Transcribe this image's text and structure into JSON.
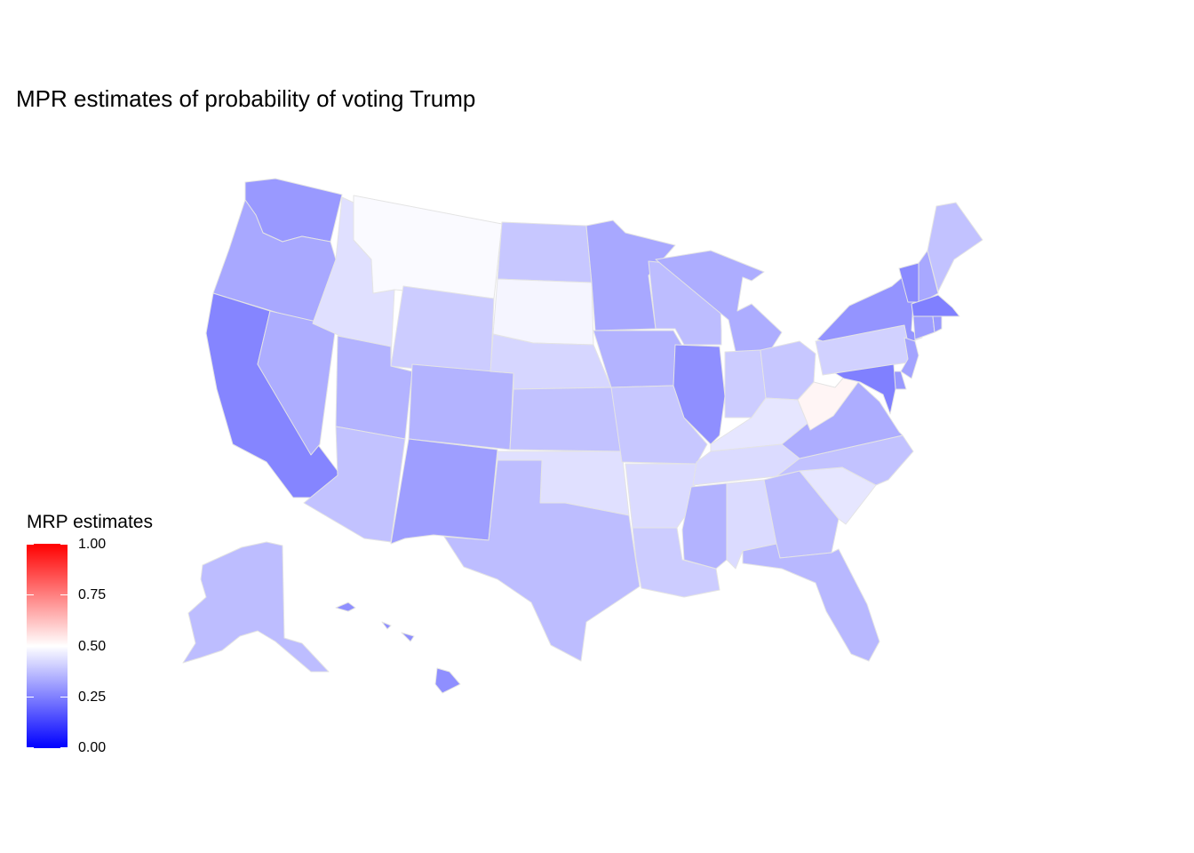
{
  "title": "MPR estimates of probability of voting Trump",
  "legend": {
    "title": "MRP estimates",
    "ticks": [
      "1.00",
      "0.75",
      "0.50",
      "0.25",
      "0.00"
    ],
    "colors": {
      "high": "#ff0000",
      "mid": "#ffffff",
      "low": "#0000ff"
    }
  },
  "state_estimates": {
    "WA": 0.3,
    "OR": 0.33,
    "CA": 0.26,
    "NV": 0.34,
    "ID": 0.44,
    "MT": 0.49,
    "WY": 0.4,
    "UT": 0.35,
    "AZ": 0.38,
    "CO": 0.35,
    "NM": 0.31,
    "ND": 0.39,
    "SD": 0.48,
    "NE": 0.42,
    "KS": 0.38,
    "OK": 0.44,
    "TX": 0.37,
    "MN": 0.33,
    "IA": 0.35,
    "MO": 0.39,
    "AR": 0.43,
    "LA": 0.4,
    "WI": 0.37,
    "IL": 0.28,
    "MI": 0.34,
    "IN": 0.4,
    "OH": 0.39,
    "KY": 0.45,
    "TN": 0.43,
    "MS": 0.35,
    "AL": 0.43,
    "GA": 0.37,
    "FL": 0.36,
    "SC": 0.45,
    "NC": 0.38,
    "VA": 0.34,
    "WV": 0.52,
    "PA": 0.41,
    "NY": 0.29,
    "VT": 0.27,
    "NH": 0.33,
    "ME": 0.38,
    "MA": 0.25,
    "CT": 0.31,
    "RI": 0.3,
    "NJ": 0.32,
    "DE": 0.3,
    "MD": 0.25,
    "AK": 0.37,
    "HI": 0.28
  }
}
